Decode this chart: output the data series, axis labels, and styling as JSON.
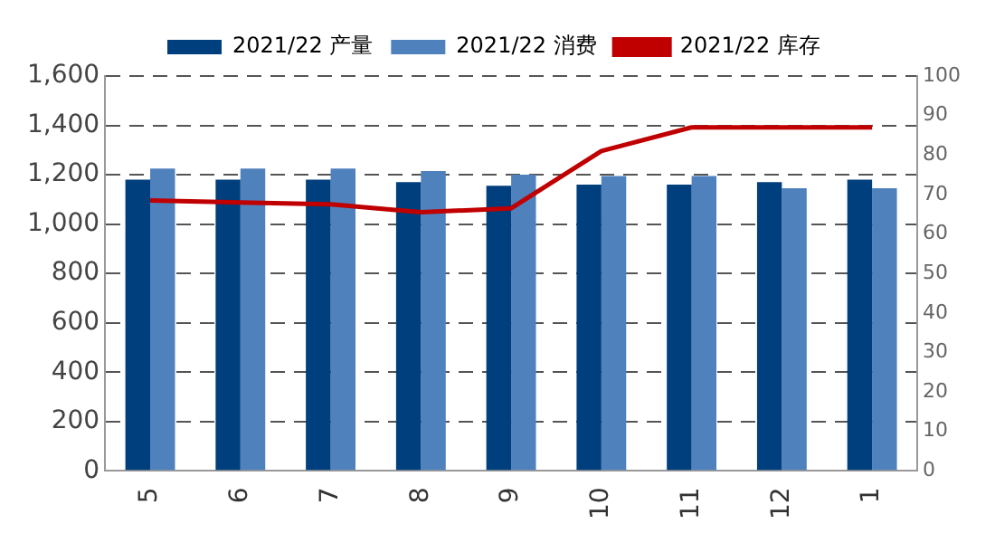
{
  "chart_data": {
    "type": "bar",
    "categories": [
      "5",
      "6",
      "7",
      "8",
      "9",
      "10",
      "11",
      "12",
      "1"
    ],
    "series": [
      {
        "name": "2021/22 产量",
        "color": "#003f7d",
        "values": [
          1180,
          1180,
          1180,
          1170,
          1155,
          1160,
          1160,
          1170,
          1180
        ]
      },
      {
        "name": "2021/22 消费",
        "color": "#4f81bd",
        "values": [
          1225,
          1225,
          1225,
          1215,
          1200,
          1195,
          1195,
          1145,
          1145
        ]
      },
      {
        "name": "2021/22 库存",
        "type": "line",
        "axis": "y2",
        "color": "#c00000",
        "values": [
          68.5,
          68,
          67.5,
          65.5,
          66.5,
          81,
          87,
          87,
          87
        ]
      }
    ],
    "ylim": [
      0,
      1600
    ],
    "yticks": [
      0,
      200,
      400,
      600,
      800,
      {
        "value": 1000,
        "label": "1,000"
      },
      {
        "value": 1200,
        "label": "1,200"
      },
      {
        "value": 1400,
        "label": "1,400"
      },
      {
        "value": 1600,
        "label": "1,600"
      }
    ],
    "y2lim": [
      0,
      100
    ],
    "y2ticks": [
      0,
      10,
      20,
      30,
      40,
      50,
      60,
      70,
      80,
      90,
      100
    ],
    "grid": "y",
    "legend": "top",
    "marker": "none",
    "line_style": "solid"
  }
}
